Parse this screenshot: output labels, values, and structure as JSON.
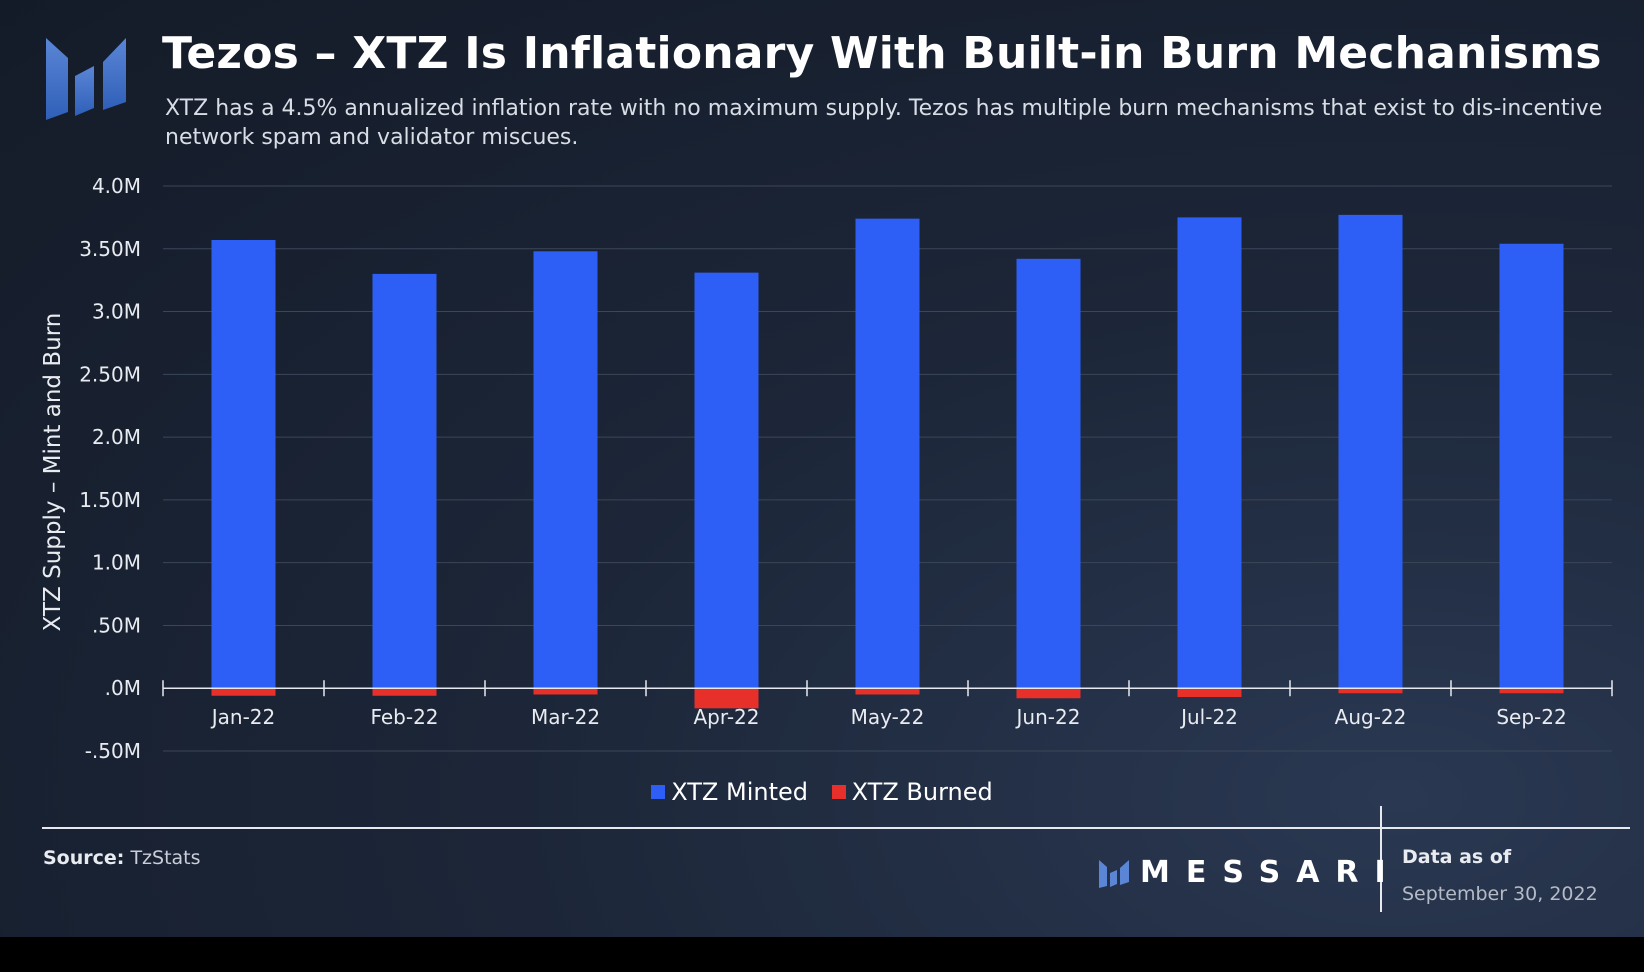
{
  "title": "Tezos – XTZ Is Inflationary With Built-in Burn Mechanisms",
  "subtitle": "XTZ has a 4.5% annualized inflation rate with no maximum supply. Tezos has multiple burn mechanisms that exist to dis-incentive network spam and validator miscues.",
  "colors": {
    "minted": "#2d5ff7",
    "burned": "#e8302a",
    "background": "#1c2638"
  },
  "chart_data": {
    "type": "bar",
    "stacked": true,
    "categories": [
      "Jan-22",
      "Feb-22",
      "Mar-22",
      "Apr-22",
      "May-22",
      "Jun-22",
      "Jul-22",
      "Aug-22",
      "Sep-22"
    ],
    "series": [
      {
        "name": "XTZ Minted",
        "color": "#2d5ff7",
        "values": [
          3570000,
          3300000,
          3480000,
          3310000,
          3740000,
          3420000,
          3750000,
          3770000,
          3540000
        ]
      },
      {
        "name": "XTZ Burned",
        "color": "#e8302a",
        "values": [
          -60000,
          -60000,
          -50000,
          -160000,
          -50000,
          -80000,
          -70000,
          -40000,
          -40000
        ]
      }
    ],
    "ylabel": "XTZ Supply – Mint and Burn",
    "xlabel": "",
    "ylim": [
      -500000,
      4000000
    ],
    "yticks": [
      -500000,
      0,
      500000,
      1000000,
      1500000,
      2000000,
      2500000,
      3000000,
      3500000,
      4000000
    ],
    "ytick_labels": [
      "-.50M",
      ".0M",
      ".50M",
      "1.0M",
      "1.50M",
      "2.0M",
      "2.50M",
      "3.0M",
      "3.50M",
      "4.0M"
    ],
    "grid": true,
    "legend_position": "bottom-center"
  },
  "legend": {
    "minted_label": "XTZ Minted",
    "burned_label": "XTZ Burned"
  },
  "footer": {
    "source_label": "Source:",
    "source_value": "TzStats",
    "brand": "MESSARI",
    "data_as_of_label": "Data as of",
    "data_as_of_date": "September 30, 2022"
  }
}
